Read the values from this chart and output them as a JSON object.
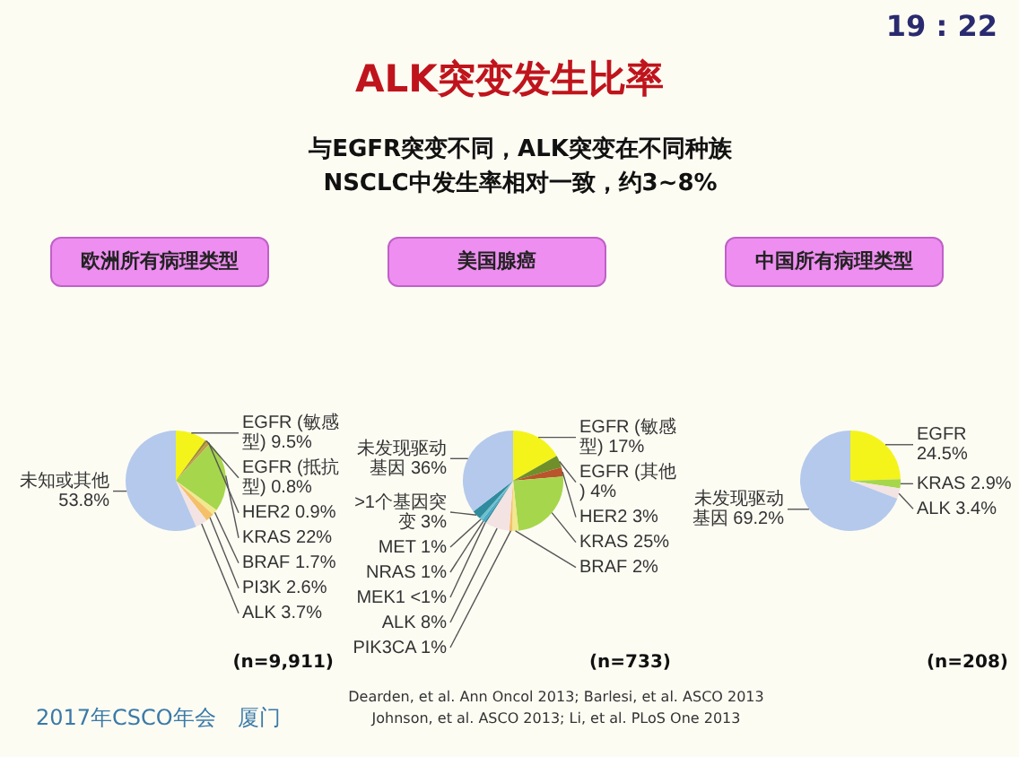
{
  "chart_data": [
    {
      "type": "other",
      "title": "ALK突变发生比率",
      "subtitle": "与EGFR突变不同，ALK突变在不同种族NSCLC中发生率相对一致，约3~8%",
      "annotations": [
        "19 : 22",
        "2017年CSCO年会　厦门",
        "Dearden, et al. Ann Oncol 2013; Barlesi, et al. ASCO 2013",
        "Johnson, et al. ASCO 2013; Li, et al. PLoS One 2013"
      ]
    },
    {
      "type": "pie",
      "title": "欧洲所有病理类型",
      "categories": [
        "EGFR (敏感型)",
        "EGFR (抵抗型)",
        "HER2",
        "KRAS",
        "BRAF",
        "PI3K",
        "ALK",
        "未知或其他"
      ],
      "values": [
        9.5,
        0.8,
        0.9,
        22,
        1.7,
        2.6,
        3.7,
        53.8
      ],
      "value_labels": [
        "9.5%",
        "0.8%",
        "0.9%",
        "22%",
        "1.7%",
        "2.6%",
        "3.7%",
        "53.8%"
      ],
      "colors": [
        "#f4f41a",
        "#9a8c2c",
        "#c49a4a",
        "#a6d64c",
        "#f2e88e",
        "#f5c06a",
        "#f3e3e3",
        "#b4c9ec"
      ],
      "annotations": [
        "(n=9,911)"
      ]
    },
    {
      "type": "pie",
      "title": "美国腺癌",
      "categories": [
        "EGFR (敏感型)",
        "EGFR (其他)",
        "HER2",
        "KRAS",
        "BRAF",
        "PIK3CA",
        "ALK",
        "MEK1",
        "NRAS",
        "MET",
        ">1个基因突变",
        "未发现驱动基因"
      ],
      "values": [
        17,
        4,
        3,
        25,
        2,
        1,
        8,
        0.5,
        1,
        1,
        3,
        36
      ],
      "value_labels": [
        "17%",
        "4%",
        "3%",
        "25%",
        "2%",
        "1%",
        "8%",
        "<1%",
        "1%",
        "1%",
        "3%",
        "36%"
      ],
      "colors": [
        "#f4f41a",
        "#6e8f2a",
        "#b8552c",
        "#a6d64c",
        "#f2e88e",
        "#f5c06a",
        "#f3e3e3",
        "#2a7f93",
        "#48a9c2",
        "#6cc0d0",
        "#2f8b9e",
        "#b4c9ec"
      ],
      "annotations": [
        "(n=733)"
      ]
    },
    {
      "type": "pie",
      "title": "中国所有病理类型",
      "categories": [
        "EGFR",
        "KRAS",
        "ALK",
        "未发现驱动基因"
      ],
      "values": [
        24.5,
        2.9,
        3.4,
        69.2
      ],
      "value_labels": [
        "24.5%",
        "2.9%",
        "3.4%",
        "69.2%"
      ],
      "colors": [
        "#f4f41a",
        "#a6d64c",
        "#f3e3e3",
        "#b4c9ec"
      ],
      "annotations": [
        "(n=208)"
      ]
    }
  ]
}
